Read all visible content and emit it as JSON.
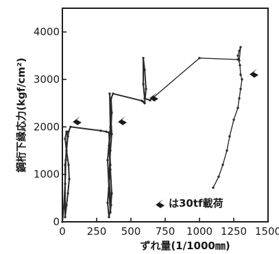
{
  "chart_data": {
    "type": "line",
    "title": "",
    "xlabel": "ずれ量(1/1000㎜)",
    "ylabel": "鋼桁下縁応力(kgf/cm²)",
    "xlim": [
      0,
      1500
    ],
    "ylim": [
      0,
      4500
    ],
    "x_ticks": [
      "0",
      "250",
      "500",
      "750",
      "1000",
      "1250",
      "1500"
    ],
    "x_tick_values": [
      0,
      250,
      500,
      750,
      1000,
      1250,
      1500
    ],
    "y_ticks": [
      "0",
      "1000",
      "2000",
      "3000",
      "4000"
    ],
    "y_tick_values": [
      0,
      1000,
      2000,
      3000,
      4000
    ],
    "grid": false,
    "legend": {
      "label": "は30tf載荷",
      "marker": "arrow",
      "position": "bottom-right"
    },
    "series": [
      {
        "x": [
          0,
          10,
          20,
          25,
          30,
          40,
          30,
          20,
          30,
          45,
          50,
          40,
          30,
          20,
          20,
          40,
          45,
          60,
          280,
          320,
          340,
          350,
          330,
          340,
          355,
          340,
          350,
          360,
          345,
          350,
          330,
          340,
          350,
          360,
          350,
          340,
          355,
          360,
          355,
          370,
          580,
          590,
          600,
          610,
          600,
          590,
          590,
          600,
          640,
          1000,
          1280,
          1290,
          1300,
          1290,
          1280,
          1295,
          1300,
          1310,
          1300,
          1290,
          1280,
          1250,
          1220,
          1200,
          1170,
          1140,
          1100
        ],
        "y": [
          0,
          300,
          800,
          1300,
          1600,
          1800,
          1900,
          1750,
          1500,
          1200,
          900,
          600,
          350,
          100,
          1200,
          1800,
          1900,
          2000,
          1920,
          1900,
          1880,
          1200,
          400,
          100,
          350,
          900,
          1500,
          1850,
          2700,
          2000,
          1300,
          700,
          200,
          600,
          1100,
          1600,
          2000,
          2300,
          2600,
          2700,
          2550,
          2530,
          2500,
          2800,
          3200,
          3450,
          2900,
          2600,
          2560,
          3450,
          3420,
          3400,
          3680,
          3600,
          3500,
          3300,
          3100,
          3000,
          2800,
          2600,
          2400,
          2150,
          1800,
          1500,
          1200,
          950,
          720
        ]
      }
    ],
    "markers_30tf": [
      {
        "x": 50,
        "y": 2050
      },
      {
        "x": 380,
        "y": 2050
      },
      {
        "x": 610,
        "y": 2550
      },
      {
        "x": 1340,
        "y": 3050
      }
    ]
  }
}
